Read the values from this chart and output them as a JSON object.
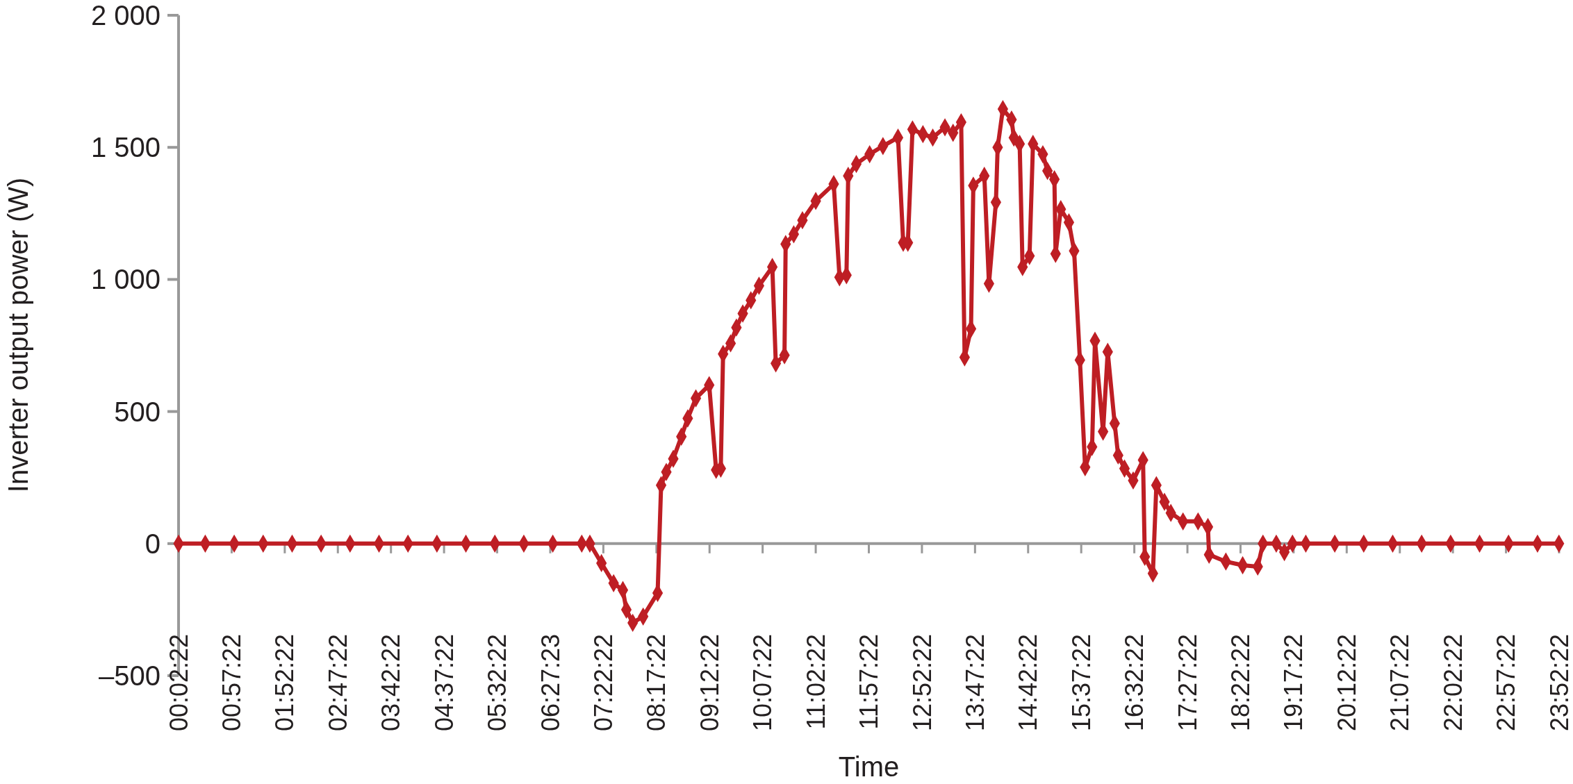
{
  "chart_data": {
    "type": "line",
    "xlabel": "Time",
    "ylabel": "Inverter output power (W)",
    "marker": "diamond",
    "line_style": "solid",
    "xlim": [
      0.0394,
      23.8728
    ],
    "ylim": [
      -500,
      2000
    ],
    "yticks": [
      {
        "value": -500,
        "label": "–500"
      },
      0,
      500,
      {
        "value": 1000,
        "label": "1 000"
      },
      {
        "value": 1500,
        "label": "1 500"
      },
      {
        "value": 2000,
        "label": "2 000"
      }
    ],
    "xticks": [
      {
        "value": 0.0394,
        "label": "00:02:22"
      },
      {
        "value": 0.9561,
        "label": "00:57:22"
      },
      {
        "value": 1.8728,
        "label": "01:52:22"
      },
      {
        "value": 2.7894,
        "label": "02:47:22"
      },
      {
        "value": 3.7061,
        "label": "03:42:22"
      },
      {
        "value": 4.6228,
        "label": "04:37:22"
      },
      {
        "value": 5.5394,
        "label": "05:32:22"
      },
      {
        "value": 6.4564,
        "label": "06:27:23"
      },
      {
        "value": 7.3728,
        "label": "07:22:22"
      },
      {
        "value": 8.2894,
        "label": "08:17:22"
      },
      {
        "value": 9.2061,
        "label": "09:12:22"
      },
      {
        "value": 10.1228,
        "label": "10:07:22"
      },
      {
        "value": 11.0394,
        "label": "11:02:22"
      },
      {
        "value": 11.9561,
        "label": "11:57:22"
      },
      {
        "value": 12.8728,
        "label": "12:52:22"
      },
      {
        "value": 13.7894,
        "label": "13:47:22"
      },
      {
        "value": 14.7061,
        "label": "14:42:22"
      },
      {
        "value": 15.6228,
        "label": "15:37:22"
      },
      {
        "value": 16.5394,
        "label": "16:32:22"
      },
      {
        "value": 17.4561,
        "label": "17:27:22"
      },
      {
        "value": 18.3728,
        "label": "18:22:22"
      },
      {
        "value": 19.2894,
        "label": "19:17:22"
      },
      {
        "value": 20.2061,
        "label": "20:12:22"
      },
      {
        "value": 21.1228,
        "label": "21:07:22"
      },
      {
        "value": 22.0394,
        "label": "22:02:22"
      },
      {
        "value": 22.9561,
        "label": "22:57:22"
      },
      {
        "value": 23.8728,
        "label": "23:52:22"
      }
    ],
    "series": [
      {
        "color": "#be1e24",
        "x": [
          0.04,
          0.5,
          1,
          1.5,
          2,
          2.5,
          3,
          3.5,
          4,
          4.5,
          5,
          5.5,
          6,
          6.5,
          7,
          7.14,
          7.34,
          7.55,
          7.71,
          7.77,
          7.88,
          8.06,
          8.31,
          8.37,
          8.46,
          8.58,
          8.72,
          8.83,
          8.97,
          9.2,
          9.32,
          9.4,
          9.44,
          9.57,
          9.67,
          9.78,
          9.92,
          10.06,
          10.29,
          10.35,
          10.5,
          10.52,
          10.66,
          10.81,
          11.04,
          11.35,
          11.45,
          11.57,
          11.6,
          11.74,
          11.97,
          12.2,
          12.46,
          12.55,
          12.63,
          12.71,
          12.89,
          13.06,
          13.27,
          13.41,
          13.55,
          13.61,
          13.72,
          13.76,
          13.95,
          14.03,
          14.15,
          14.18,
          14.27,
          14.42,
          14.46,
          14.56,
          14.61,
          14.73,
          14.79,
          14.96,
          15.04,
          15.16,
          15.18,
          15.27,
          15.41,
          15.5,
          15.6,
          15.69,
          15.81,
          15.86,
          16,
          16.08,
          16.2,
          16.26,
          16.37,
          16.52,
          16.69,
          16.72,
          16.86,
          16.92,
          17.06,
          17.17,
          17.38,
          17.64,
          17.81,
          17.83,
          18.12,
          18.41,
          18.67,
          18.76,
          18.99,
          19.13,
          19.27,
          19.5,
          20,
          20.5,
          21,
          21.5,
          22,
          22.5,
          23,
          23.5,
          23.87
        ],
        "values": [
          0,
          0,
          0,
          0,
          0,
          0,
          0,
          0,
          0,
          0,
          0,
          0,
          0,
          0,
          0,
          0,
          -74,
          -150,
          -176,
          -250,
          -300,
          -276,
          -187,
          221,
          271,
          321,
          405,
          474,
          550,
          600,
          279,
          284,
          718,
          758,
          818,
          871,
          921,
          976,
          1047,
          682,
          713,
          1134,
          1171,
          1224,
          1297,
          1361,
          1008,
          1016,
          1392,
          1437,
          1474,
          1505,
          1537,
          1139,
          1139,
          1568,
          1550,
          1537,
          1576,
          1555,
          1595,
          705,
          813,
          1355,
          1392,
          984,
          1292,
          1500,
          1645,
          1605,
          1537,
          1513,
          1047,
          1089,
          1513,
          1474,
          1411,
          1379,
          1097,
          1266,
          1216,
          1108,
          695,
          289,
          366,
          768,
          424,
          726,
          455,
          334,
          284,
          239,
          316,
          -50,
          -113,
          221,
          158,
          116,
          84,
          84,
          63,
          -42,
          -68,
          -82,
          -87,
          0,
          0,
          -32,
          0,
          0,
          0,
          0,
          0,
          0,
          0,
          0,
          0,
          0,
          0
        ]
      }
    ]
  }
}
